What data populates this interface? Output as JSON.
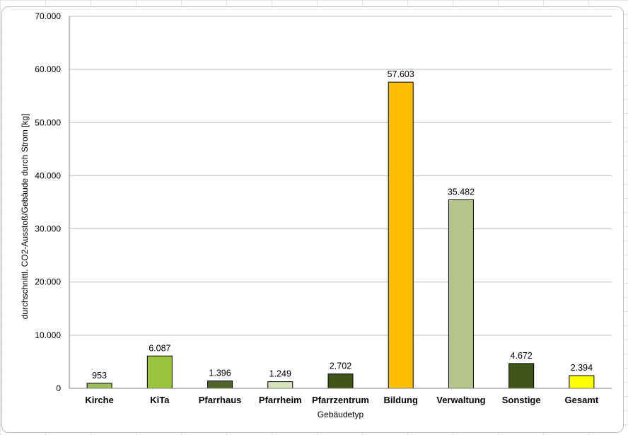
{
  "chart_data": {
    "type": "bar",
    "categories": [
      "Kirche",
      "KiTa",
      "Pfarrhaus",
      "Pfarrheim",
      "Pfarrzentrum",
      "Bildung",
      "Verwaltung",
      "Sonstige",
      "Gesamt"
    ],
    "values": [
      953,
      6087,
      1396,
      1249,
      2702,
      57603,
      35482,
      4672,
      2394
    ],
    "data_labels": [
      "953",
      "6.087",
      "1.396",
      "1.249",
      "2.702",
      "57.603",
      "35.482",
      "4.672",
      "2.394"
    ],
    "colors": [
      "#9bbb59",
      "#9bc53d",
      "#4f6228",
      "#d7e4bd",
      "#3f5618",
      "#fbbf00",
      "#b3c38a",
      "#3f5618",
      "#ffff00"
    ],
    "xlabel": "Gebäudetyp",
    "ylabel": "durchschnittl. CO2-Ausstoß/Gebäude durch Strom [kg]",
    "ylim": [
      0,
      70000
    ],
    "yticks": [
      0,
      10000,
      20000,
      30000,
      40000,
      50000,
      60000,
      70000
    ],
    "ytick_labels": [
      "0",
      "10.000",
      "20.000",
      "30.000",
      "40.000",
      "50.000",
      "60.000",
      "70.000"
    ],
    "grid": true,
    "legend": "none"
  }
}
